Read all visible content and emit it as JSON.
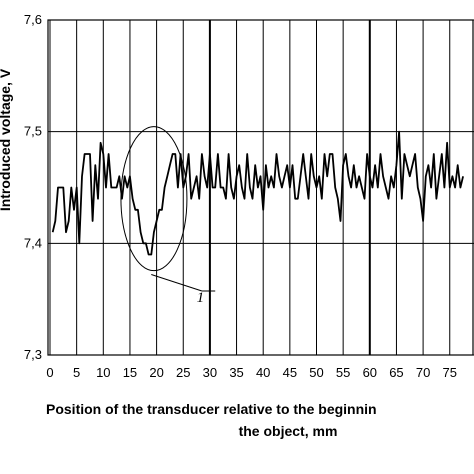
{
  "chart_data": {
    "type": "line",
    "title": "",
    "xlabel_line1": "Position of the transducer relative to the beginnin",
    "xlabel_line2": "the object, mm",
    "ylabel": "Introduced voltage, V",
    "xlim": [
      0,
      78
    ],
    "ylim": [
      7.3,
      7.6
    ],
    "x_ticks": [
      0,
      5,
      10,
      15,
      20,
      25,
      30,
      35,
      40,
      45,
      50,
      55,
      60,
      65,
      70,
      75
    ],
    "x_tick_labels": [
      "0",
      "5",
      "10",
      "15",
      "20",
      "25",
      "30",
      "35",
      "40",
      "45",
      "50",
      "55",
      "60",
      "65",
      "70",
      "75"
    ],
    "y_ticks": [
      7.3,
      7.4,
      7.5,
      7.6
    ],
    "y_tick_labels": [
      "7,3",
      "7,4",
      "7,5",
      "7,6"
    ],
    "grid": "vertical every 5 mm, horizontal every 0.1 V",
    "annotation": {
      "text": "1",
      "target": "dip near x = 19 mm"
    },
    "series": [
      {
        "x": [
          0.5,
          1,
          1.5,
          2,
          2.5,
          3,
          3.5,
          4,
          4.5,
          5,
          5.5,
          6,
          6.5,
          7,
          7.5,
          8,
          8.5,
          9,
          9.5,
          10,
          10.5,
          11,
          11.5,
          12,
          12.5,
          13,
          13.5,
          14,
          14.5,
          15,
          15.5,
          16,
          16.5,
          17,
          17.5,
          18,
          18.5,
          19,
          19.5,
          20,
          20.5,
          21,
          21.5,
          22,
          22.5,
          23,
          23.5,
          24,
          24.5,
          25,
          25.5,
          26,
          26.5,
          27,
          27.5,
          28,
          28.5,
          29,
          29.5,
          30,
          30.5,
          31,
          31.5,
          32,
          32.5,
          33,
          33.5,
          34,
          34.5,
          35,
          35.5,
          36,
          36.5,
          37,
          37.5,
          38,
          38.5,
          39,
          39.5,
          40,
          40.5,
          41,
          41.5,
          42,
          42.5,
          43,
          43.5,
          44,
          44.5,
          45,
          45.5,
          46,
          46.5,
          47,
          47.5,
          48,
          48.5,
          49,
          49.5,
          50,
          50.5,
          51,
          51.5,
          52,
          52.5,
          53,
          53.5,
          54,
          54.5,
          55,
          55.5,
          56,
          56.5,
          57,
          57.5,
          58,
          58.5,
          59,
          59.5,
          60,
          60.5,
          61,
          61.5,
          62,
          62.5,
          63,
          63.5,
          64,
          64.5,
          65,
          65.5,
          66,
          66.5,
          67,
          67.5,
          68,
          68.5,
          69,
          69.5,
          70,
          70.5,
          71,
          71.5,
          72,
          72.5,
          73,
          73.5,
          74,
          74.5,
          75,
          75.5,
          76,
          76.5,
          77,
          77.5
        ],
        "y": [
          7.41,
          7.42,
          7.45,
          7.45,
          7.45,
          7.41,
          7.42,
          7.45,
          7.43,
          7.45,
          7.4,
          7.46,
          7.48,
          7.48,
          7.48,
          7.42,
          7.47,
          7.44,
          7.49,
          7.48,
          7.45,
          7.48,
          7.45,
          7.45,
          7.45,
          7.46,
          7.44,
          7.46,
          7.45,
          7.46,
          7.44,
          7.43,
          7.43,
          7.41,
          7.4,
          7.4,
          7.39,
          7.39,
          7.41,
          7.42,
          7.43,
          7.43,
          7.45,
          7.46,
          7.47,
          7.48,
          7.48,
          7.45,
          7.48,
          7.45,
          7.46,
          7.48,
          7.44,
          7.45,
          7.46,
          7.44,
          7.48,
          7.46,
          7.45,
          7.48,
          7.45,
          7.45,
          7.48,
          7.45,
          7.45,
          7.44,
          7.48,
          7.45,
          7.44,
          7.46,
          7.47,
          7.45,
          7.44,
          7.48,
          7.45,
          7.44,
          7.47,
          7.45,
          7.46,
          7.43,
          7.47,
          7.45,
          7.46,
          7.45,
          7.48,
          7.46,
          7.45,
          7.46,
          7.47,
          7.45,
          7.47,
          7.44,
          7.44,
          7.46,
          7.48,
          7.46,
          7.44,
          7.48,
          7.46,
          7.45,
          7.46,
          7.44,
          7.48,
          7.46,
          7.48,
          7.48,
          7.45,
          7.44,
          7.42,
          7.47,
          7.48,
          7.46,
          7.45,
          7.47,
          7.45,
          7.46,
          7.45,
          7.44,
          7.48,
          7.46,
          7.45,
          7.47,
          7.45,
          7.48,
          7.46,
          7.45,
          7.44,
          7.46,
          7.45,
          7.47,
          7.5,
          7.44,
          7.48,
          7.47,
          7.46,
          7.47,
          7.48,
          7.45,
          7.44,
          7.42,
          7.46,
          7.47,
          7.45,
          7.48,
          7.44,
          7.46,
          7.48,
          7.45,
          7.49,
          7.45,
          7.46,
          7.45,
          7.47,
          7.45,
          7.46
        ]
      }
    ]
  }
}
